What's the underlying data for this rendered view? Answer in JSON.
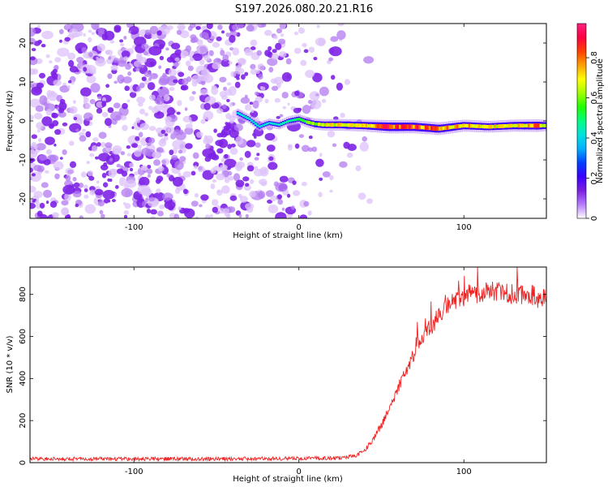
{
  "title": "S197.2026.080.20.21.R16",
  "chart_data": [
    {
      "type": "heatmap",
      "xlabel": "Height of straight line (km)",
      "ylabel": "Frequency (Hz)",
      "xlim": [
        -163,
        150
      ],
      "ylim": [
        -25,
        25
      ],
      "xticks": [
        -100,
        0,
        100
      ],
      "yticks": [
        -20,
        -10,
        0,
        10,
        20
      ],
      "colorbar": {
        "label": "Normalized spectral amplitude",
        "range": [
          0,
          0.97
        ],
        "ticks": [
          0.0,
          0.2,
          0.4,
          0.6,
          0.8
        ],
        "colors": [
          "#ffffff",
          "#b57bff",
          "#7b1fe0",
          "#3a00ff",
          "#0040ff",
          "#00b0ff",
          "#00e0e0",
          "#00ff80",
          "#20ff00",
          "#a0ff00",
          "#ffff00",
          "#ffa000",
          "#ff4000",
          "#ff0040",
          "#ff2080"
        ]
      },
      "ridge": {
        "x": [
          -37,
          -30,
          -24,
          -18,
          -12,
          -6,
          0,
          5,
          10,
          15,
          25,
          40,
          55,
          70,
          85,
          100,
          115,
          130,
          145,
          150
        ],
        "freq": [
          2,
          0.5,
          -1.5,
          -0.5,
          -1,
          0,
          0.5,
          -0.3,
          -0.8,
          -1,
          -1,
          -1.2,
          -1.5,
          -1.5,
          -2,
          -1.2,
          -1.5,
          -1.2,
          -1.2,
          -1.2
        ],
        "amplitude": [
          0.15,
          0.12,
          0.12,
          0.12,
          0.15,
          0.2,
          0.25,
          0.35,
          0.45,
          0.5,
          0.55,
          0.6,
          0.8,
          0.75,
          0.7,
          0.6,
          0.55,
          0.6,
          0.7,
          0.5
        ]
      },
      "noise_region_xlim": [
        -163,
        25
      ]
    },
    {
      "type": "line",
      "xlabel": "Height of straight line (km)",
      "ylabel": "SNR (10 * v/v)",
      "xlim": [
        -163,
        150
      ],
      "ylim": [
        0,
        930
      ],
      "xticks": [
        -100,
        0,
        100
      ],
      "yticks": [
        0,
        200,
        400,
        600,
        800
      ],
      "color": "#ee2222",
      "series": [
        {
          "x": [
            -163,
            -100,
            -50,
            0,
            25,
            35,
            40,
            45,
            50,
            55,
            60,
            65,
            70,
            75,
            80,
            85,
            90,
            95,
            100,
            110,
            120,
            130,
            140,
            150
          ],
          "values": [
            18,
            18,
            18,
            20,
            22,
            35,
            60,
            110,
            180,
            260,
            350,
            440,
            520,
            590,
            650,
            700,
            740,
            770,
            790,
            810,
            810,
            805,
            800,
            770
          ]
        }
      ]
    }
  ]
}
